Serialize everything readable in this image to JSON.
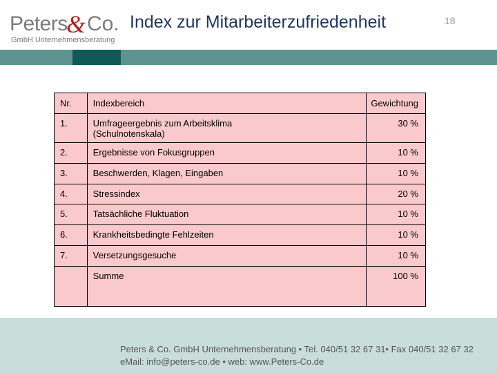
{
  "header": {
    "logo_main": "Peters",
    "logo_amp": "&",
    "logo_co": "Co.",
    "logo_sub": "GmbH Unternehmensberatung",
    "title": "Index zur Mitarbeiterzufriedenheit",
    "page_number": "18"
  },
  "table": {
    "headers": [
      "Nr.",
      "Indexbereich",
      "Gewichtung"
    ],
    "rows": [
      {
        "nr": "1.",
        "bereich": "Umfrageergebnis zum Arbeitsklima (Schulnotenskala)",
        "gewichtung": "30 %"
      },
      {
        "nr": "2.",
        "bereich": "Ergebnisse von Fokusgruppen",
        "gewichtung": "10 %"
      },
      {
        "nr": "3.",
        "bereich": "Beschwerden, Klagen, Eingaben",
        "gewichtung": "10 %"
      },
      {
        "nr": "4.",
        "bereich": "Stressindex",
        "gewichtung": "20 %"
      },
      {
        "nr": "5.",
        "bereich": "Tatsächliche Fluktuation",
        "gewichtung": "10 %"
      },
      {
        "nr": "6.",
        "bereich": "Krankheitsbedingte Fehlzeiten",
        "gewichtung": "10 %"
      },
      {
        "nr": "7.",
        "bereich": "Versetzungsgesuche",
        "gewichtung": "10 %"
      }
    ],
    "summe_label": "Summe",
    "summe_value": "100 %"
  },
  "footer": {
    "line1": "Peters & Co. GmbH Unternehmensberatung • Tel. 040/51 32 67 31• Fax 040/51 32 67 32",
    "line2": "eMail: info@peters-co.de • web: www.Peters-Co.de"
  },
  "colors": {
    "band": "#5f9390",
    "band_dark": "#0f5a57",
    "table_fill": "#f9c9cb",
    "title": "#1f3864",
    "logo_accent": "#b22222"
  }
}
